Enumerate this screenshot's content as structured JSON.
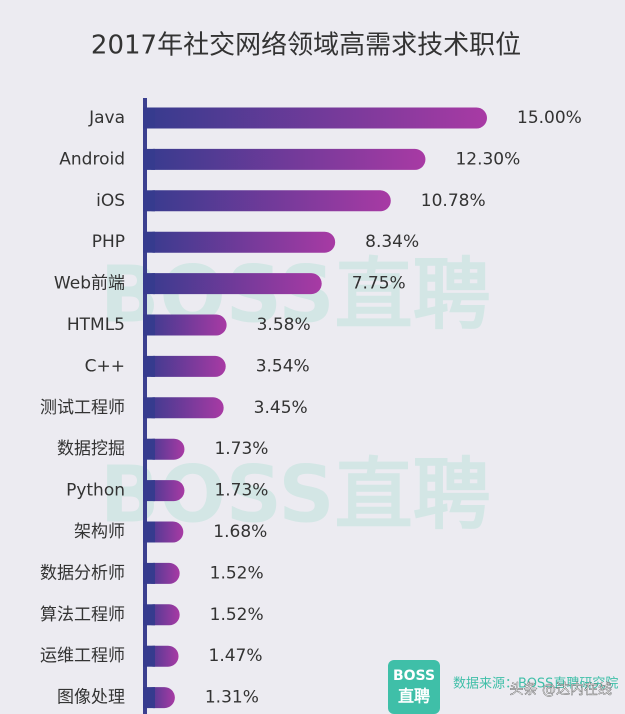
{
  "chart_data": {
    "type": "bar",
    "orientation": "horizontal",
    "title": "2017年社交网络领域高需求技术职位",
    "categories": [
      "Java",
      "Android",
      "iOS",
      "PHP",
      "Web前端",
      "HTML5",
      "C++",
      "测试工程师",
      "数据挖掘",
      "Python",
      "架构师",
      "数据分析师",
      "算法工程师",
      "运维工程师",
      "图像处理"
    ],
    "values": [
      15.0,
      12.3,
      10.78,
      8.34,
      7.75,
      3.58,
      3.54,
      3.45,
      1.73,
      1.73,
      1.68,
      1.52,
      1.52,
      1.47,
      1.31
    ],
    "value_labels": [
      "15.00%",
      "12.30%",
      "10.78%",
      "8.34%",
      "7.75%",
      "3.58%",
      "3.54%",
      "3.45%",
      "1.73%",
      "1.73%",
      "1.68%",
      "1.52%",
      "1.52%",
      "1.47%",
      "1.31%"
    ],
    "xlim": [
      0,
      15
    ],
    "colors": [
      "#363b8e",
      "#a83aa4"
    ],
    "watermark": "BOSS直聘",
    "logo": [
      "BOSS",
      "直聘"
    ],
    "source": "数据来源：BOSS直聘研究院",
    "credit": "头条 @达内在线"
  }
}
